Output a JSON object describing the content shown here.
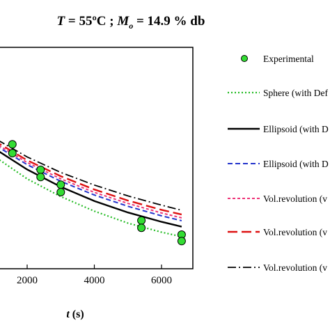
{
  "chart_data": {
    "type": "line",
    "title_parts": {
      "t_var": "T",
      "t_value": " = 55ºC ; ",
      "m_var": "M",
      "m_sub": "o",
      "m_value": " = 14.9 % db"
    },
    "xlabel_var": "t",
    "xlabel_unit": " (s)",
    "xlim": [
      -1000,
      7000
    ],
    "ylim": [
      0,
      1
    ],
    "x_ticks": [
      2000,
      4000,
      6000
    ],
    "x_tick_labels": [
      "2000",
      "4000",
      "6000"
    ],
    "grid": false,
    "legend_position": "right (outside plot)",
    "experimental": {
      "name": "Experimental",
      "color": "#33dd33",
      "points": [
        {
          "x": 1560,
          "y": 0.562
        },
        {
          "x": 1560,
          "y": 0.522
        },
        {
          "x": 2400,
          "y": 0.447
        },
        {
          "x": 2400,
          "y": 0.414
        },
        {
          "x": 3000,
          "y": 0.38
        },
        {
          "x": 3000,
          "y": 0.346
        },
        {
          "x": 5400,
          "y": 0.218
        },
        {
          "x": 5400,
          "y": 0.185
        },
        {
          "x": 6600,
          "y": 0.154
        },
        {
          "x": 6600,
          "y": 0.125
        }
      ]
    },
    "series": [
      {
        "name": "Sphere (with Def",
        "color": "#22bb22",
        "dash": "2,3",
        "width": 2.2,
        "x": [
          0,
          1000,
          2000,
          3000,
          4000,
          5000,
          6000,
          6600
        ],
        "y": [
          0.645,
          0.51,
          0.406,
          0.326,
          0.26,
          0.206,
          0.165,
          0.145
        ]
      },
      {
        "name": "Ellipsoid (with D",
        "color": "#000000",
        "dash": "",
        "width": 2.4,
        "x": [
          0,
          1000,
          2000,
          3000,
          4000,
          5000,
          6000,
          6600
        ],
        "y": [
          0.672,
          0.546,
          0.448,
          0.37,
          0.306,
          0.254,
          0.212,
          0.19
        ]
      },
      {
        "name": "Ellipsoid (with D",
        "color": "#2233cc",
        "dash": "7,4",
        "width": 2,
        "x": [
          0,
          1000,
          2000,
          3000,
          4000,
          5000,
          6000,
          6600
        ],
        "y": [
          0.684,
          0.563,
          0.47,
          0.395,
          0.333,
          0.282,
          0.239,
          0.217
        ]
      },
      {
        "name": "Vol.revolution (v",
        "color": "#ee3377",
        "dash": "4,3",
        "width": 2,
        "x": [
          0,
          1000,
          2000,
          3000,
          4000,
          5000,
          6000,
          6600
        ],
        "y": [
          0.689,
          0.571,
          0.48,
          0.406,
          0.345,
          0.295,
          0.252,
          0.23
        ]
      },
      {
        "name": "Vol.revolution (v",
        "color": "#dd1111",
        "dash": "14,6",
        "width": 2.4,
        "x": [
          0,
          1000,
          2000,
          3000,
          4000,
          5000,
          6000,
          6600
        ],
        "y": [
          0.696,
          0.58,
          0.49,
          0.418,
          0.358,
          0.308,
          0.266,
          0.245
        ]
      },
      {
        "name": "Vol.revolution (v",
        "color": "#000000",
        "dash": "12,4,2,4",
        "width": 1.8,
        "x": [
          0,
          1000,
          2000,
          3000,
          4000,
          5000,
          6000,
          6600
        ],
        "y": [
          0.704,
          0.592,
          0.505,
          0.435,
          0.378,
          0.329,
          0.287,
          0.264
        ]
      }
    ]
  }
}
